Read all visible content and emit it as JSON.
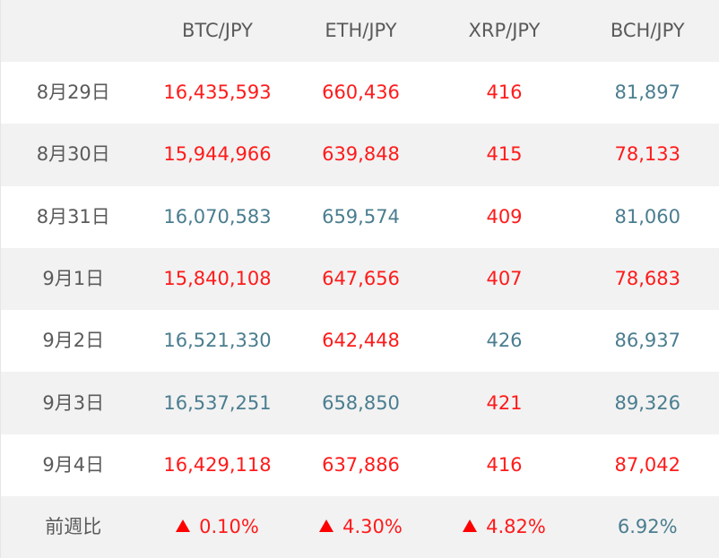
{
  "colors": {
    "up": "#ff1a1a",
    "down": "#4a7d8f",
    "header_bg": "#f2f2f2",
    "text": "#5a5a5a"
  },
  "table": {
    "headers": [
      "",
      "BTC/JPY",
      "ETH/JPY",
      "XRP/JPY",
      "BCH/JPY"
    ],
    "rows": [
      {
        "date": "8月29日",
        "cells": [
          {
            "value": "16,435,593",
            "trend": "up"
          },
          {
            "value": "660,436",
            "trend": "up"
          },
          {
            "value": "416",
            "trend": "up"
          },
          {
            "value": "81,897",
            "trend": "down"
          }
        ]
      },
      {
        "date": "8月30日",
        "cells": [
          {
            "value": "15,944,966",
            "trend": "up"
          },
          {
            "value": "639,848",
            "trend": "up"
          },
          {
            "value": "415",
            "trend": "up"
          },
          {
            "value": "78,133",
            "trend": "up"
          }
        ]
      },
      {
        "date": "8月31日",
        "cells": [
          {
            "value": "16,070,583",
            "trend": "down"
          },
          {
            "value": "659,574",
            "trend": "down"
          },
          {
            "value": "409",
            "trend": "up"
          },
          {
            "value": "81,060",
            "trend": "down"
          }
        ]
      },
      {
        "date": "9月1日",
        "cells": [
          {
            "value": "15,840,108",
            "trend": "up"
          },
          {
            "value": "647,656",
            "trend": "up"
          },
          {
            "value": "407",
            "trend": "up"
          },
          {
            "value": "78,683",
            "trend": "up"
          }
        ]
      },
      {
        "date": "9月2日",
        "cells": [
          {
            "value": "16,521,330",
            "trend": "down"
          },
          {
            "value": "642,448",
            "trend": "up"
          },
          {
            "value": "426",
            "trend": "down"
          },
          {
            "value": "86,937",
            "trend": "down"
          }
        ]
      },
      {
        "date": "9月3日",
        "cells": [
          {
            "value": "16,537,251",
            "trend": "down"
          },
          {
            "value": "658,850",
            "trend": "down"
          },
          {
            "value": "421",
            "trend": "up"
          },
          {
            "value": "89,326",
            "trend": "down"
          }
        ]
      },
      {
        "date": "9月4日",
        "cells": [
          {
            "value": "16,429,118",
            "trend": "up"
          },
          {
            "value": "637,886",
            "trend": "up"
          },
          {
            "value": "416",
            "trend": "up"
          },
          {
            "value": "87,042",
            "trend": "up"
          }
        ]
      }
    ],
    "footer": {
      "label": "前週比",
      "cells": [
        {
          "value": "0.10%",
          "trend": "up",
          "arrow": true
        },
        {
          "value": "4.30%",
          "trend": "up",
          "arrow": true
        },
        {
          "value": "4.82%",
          "trend": "up",
          "arrow": true
        },
        {
          "value": "6.92%",
          "trend": "down",
          "arrow": false
        }
      ]
    }
  }
}
